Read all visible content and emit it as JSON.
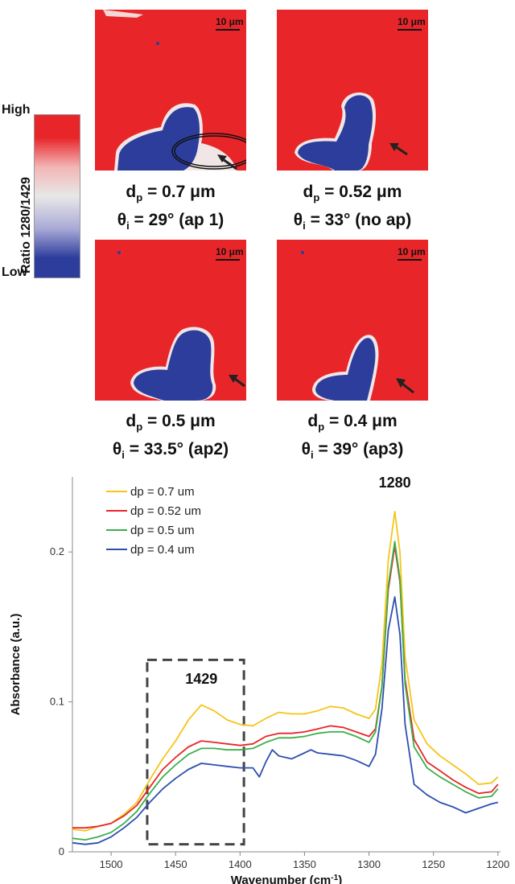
{
  "colorbar": {
    "high_label": "High",
    "low_label": "Low",
    "axis_label": "Ratio 1280/1429",
    "colors": {
      "high": "#e8262a",
      "mid": "#e8e8e8",
      "low": "#2d3d9c"
    }
  },
  "panels": [
    {
      "scale_label": "10 μm",
      "caption_line1_var": "d",
      "caption_line1_sub": "p",
      "caption_line1_val": " = 0.7 μm",
      "caption_line2_var": "θ",
      "caption_line2_sub": "i",
      "caption_line2_val": " = 29° (ap 1)"
    },
    {
      "scale_label": "10 μm",
      "caption_line1_var": "d",
      "caption_line1_sub": "p",
      "caption_line1_val": " = 0.52 μm",
      "caption_line2_var": "θ",
      "caption_line2_sub": "i",
      "caption_line2_val": " = 33° (no ap)"
    },
    {
      "scale_label": "10 μm",
      "caption_line1_var": "d",
      "caption_line1_sub": "p",
      "caption_line1_val": " = 0.5 μm",
      "caption_line2_var": "θ",
      "caption_line2_sub": "i",
      "caption_line2_val": " = 33.5° (ap2)"
    },
    {
      "scale_label": "10 μm",
      "caption_line1_var": "d",
      "caption_line1_sub": "p",
      "caption_line1_val": " = 0.4 μm",
      "caption_line2_var": "θ",
      "caption_line2_sub": "i",
      "caption_line2_val": " = 39° (ap3)"
    }
  ],
  "chart_data": {
    "type": "line",
    "xlabel_main": "Wavenumber (cm",
    "xlabel_sup": "-1",
    "xlabel_end": ")",
    "ylabel": "Absorbance (a.u.)",
    "xlim": [
      1530,
      1198
    ],
    "ylim": [
      0,
      0.25
    ],
    "xticks": [
      1500,
      1450,
      1400,
      1350,
      1300,
      1250,
      1200
    ],
    "xtick_labels": [
      "1500",
      "1450",
      "1400",
      "1350",
      "1300",
      "1250",
      "1200"
    ],
    "yticks": [
      0,
      0.1,
      0.2
    ],
    "ytick_labels": [
      "0",
      "0.1",
      "0.2"
    ],
    "legend_position": "top-left",
    "annotations": [
      {
        "text": "1280",
        "x": 1280,
        "y": 0.243
      },
      {
        "text": "1429",
        "x": 1430,
        "y": 0.112
      }
    ],
    "highlight_box": {
      "x0": 1472,
      "x1": 1397,
      "y0": 0.005,
      "y1": 0.128
    },
    "series": [
      {
        "name": "dp = 0.7 um",
        "color": "#f5c518",
        "points": [
          [
            1530,
            0.015
          ],
          [
            1520,
            0.014
          ],
          [
            1510,
            0.017
          ],
          [
            1500,
            0.019
          ],
          [
            1490,
            0.025
          ],
          [
            1480,
            0.033
          ],
          [
            1470,
            0.048
          ],
          [
            1460,
            0.062
          ],
          [
            1450,
            0.074
          ],
          [
            1440,
            0.088
          ],
          [
            1430,
            0.098
          ],
          [
            1420,
            0.094
          ],
          [
            1410,
            0.088
          ],
          [
            1400,
            0.085
          ],
          [
            1390,
            0.084
          ],
          [
            1380,
            0.089
          ],
          [
            1370,
            0.093
          ],
          [
            1360,
            0.092
          ],
          [
            1350,
            0.092
          ],
          [
            1340,
            0.094
          ],
          [
            1330,
            0.097
          ],
          [
            1320,
            0.096
          ],
          [
            1310,
            0.092
          ],
          [
            1300,
            0.089
          ],
          [
            1295,
            0.095
          ],
          [
            1290,
            0.125
          ],
          [
            1285,
            0.195
          ],
          [
            1280,
            0.227
          ],
          [
            1276,
            0.2
          ],
          [
            1272,
            0.13
          ],
          [
            1265,
            0.088
          ],
          [
            1255,
            0.072
          ],
          [
            1245,
            0.064
          ],
          [
            1235,
            0.058
          ],
          [
            1225,
            0.052
          ],
          [
            1215,
            0.045
          ],
          [
            1205,
            0.046
          ],
          [
            1200,
            0.05
          ]
        ]
      },
      {
        "name": "dp = 0.52 um",
        "color": "#e8262a",
        "points": [
          [
            1530,
            0.016
          ],
          [
            1520,
            0.016
          ],
          [
            1510,
            0.017
          ],
          [
            1500,
            0.019
          ],
          [
            1490,
            0.024
          ],
          [
            1480,
            0.031
          ],
          [
            1470,
            0.043
          ],
          [
            1460,
            0.055
          ],
          [
            1450,
            0.063
          ],
          [
            1440,
            0.07
          ],
          [
            1430,
            0.074
          ],
          [
            1420,
            0.073
          ],
          [
            1410,
            0.072
          ],
          [
            1400,
            0.071
          ],
          [
            1390,
            0.072
          ],
          [
            1380,
            0.077
          ],
          [
            1370,
            0.079
          ],
          [
            1360,
            0.079
          ],
          [
            1350,
            0.08
          ],
          [
            1340,
            0.082
          ],
          [
            1330,
            0.084
          ],
          [
            1320,
            0.083
          ],
          [
            1310,
            0.08
          ],
          [
            1300,
            0.077
          ],
          [
            1295,
            0.082
          ],
          [
            1290,
            0.11
          ],
          [
            1285,
            0.175
          ],
          [
            1280,
            0.204
          ],
          [
            1276,
            0.18
          ],
          [
            1272,
            0.115
          ],
          [
            1265,
            0.075
          ],
          [
            1255,
            0.06
          ],
          [
            1245,
            0.054
          ],
          [
            1235,
            0.048
          ],
          [
            1225,
            0.043
          ],
          [
            1215,
            0.039
          ],
          [
            1205,
            0.04
          ],
          [
            1200,
            0.045
          ]
        ]
      },
      {
        "name": "dp = 0.5 um",
        "color": "#3daf4a",
        "points": [
          [
            1530,
            0.009
          ],
          [
            1520,
            0.008
          ],
          [
            1510,
            0.01
          ],
          [
            1500,
            0.013
          ],
          [
            1490,
            0.019
          ],
          [
            1480,
            0.027
          ],
          [
            1470,
            0.039
          ],
          [
            1460,
            0.05
          ],
          [
            1450,
            0.058
          ],
          [
            1440,
            0.065
          ],
          [
            1430,
            0.069
          ],
          [
            1420,
            0.069
          ],
          [
            1410,
            0.068
          ],
          [
            1400,
            0.068
          ],
          [
            1390,
            0.069
          ],
          [
            1380,
            0.073
          ],
          [
            1370,
            0.076
          ],
          [
            1360,
            0.076
          ],
          [
            1350,
            0.077
          ],
          [
            1340,
            0.079
          ],
          [
            1330,
            0.08
          ],
          [
            1320,
            0.08
          ],
          [
            1310,
            0.077
          ],
          [
            1300,
            0.073
          ],
          [
            1295,
            0.08
          ],
          [
            1290,
            0.11
          ],
          [
            1285,
            0.178
          ],
          [
            1280,
            0.207
          ],
          [
            1276,
            0.182
          ],
          [
            1272,
            0.112
          ],
          [
            1265,
            0.07
          ],
          [
            1255,
            0.056
          ],
          [
            1245,
            0.05
          ],
          [
            1235,
            0.045
          ],
          [
            1225,
            0.04
          ],
          [
            1215,
            0.036
          ],
          [
            1205,
            0.037
          ],
          [
            1200,
            0.042
          ]
        ]
      },
      {
        "name": "dp = 0.4 um",
        "color": "#2d4fb0",
        "points": [
          [
            1530,
            0.006
          ],
          [
            1520,
            0.005
          ],
          [
            1510,
            0.006
          ],
          [
            1500,
            0.01
          ],
          [
            1490,
            0.016
          ],
          [
            1480,
            0.023
          ],
          [
            1470,
            0.033
          ],
          [
            1460,
            0.042
          ],
          [
            1450,
            0.049
          ],
          [
            1440,
            0.055
          ],
          [
            1430,
            0.059
          ],
          [
            1420,
            0.058
          ],
          [
            1410,
            0.057
          ],
          [
            1400,
            0.056
          ],
          [
            1390,
            0.056
          ],
          [
            1385,
            0.05
          ],
          [
            1380,
            0.06
          ],
          [
            1375,
            0.068
          ],
          [
            1370,
            0.064
          ],
          [
            1360,
            0.062
          ],
          [
            1350,
            0.066
          ],
          [
            1345,
            0.068
          ],
          [
            1340,
            0.066
          ],
          [
            1330,
            0.065
          ],
          [
            1320,
            0.064
          ],
          [
            1310,
            0.061
          ],
          [
            1300,
            0.057
          ],
          [
            1295,
            0.065
          ],
          [
            1290,
            0.095
          ],
          [
            1285,
            0.148
          ],
          [
            1280,
            0.17
          ],
          [
            1276,
            0.145
          ],
          [
            1272,
            0.085
          ],
          [
            1265,
            0.045
          ],
          [
            1255,
            0.038
          ],
          [
            1245,
            0.033
          ],
          [
            1235,
            0.03
          ],
          [
            1225,
            0.026
          ],
          [
            1215,
            0.029
          ],
          [
            1205,
            0.032
          ],
          [
            1200,
            0.033
          ]
        ]
      }
    ]
  }
}
